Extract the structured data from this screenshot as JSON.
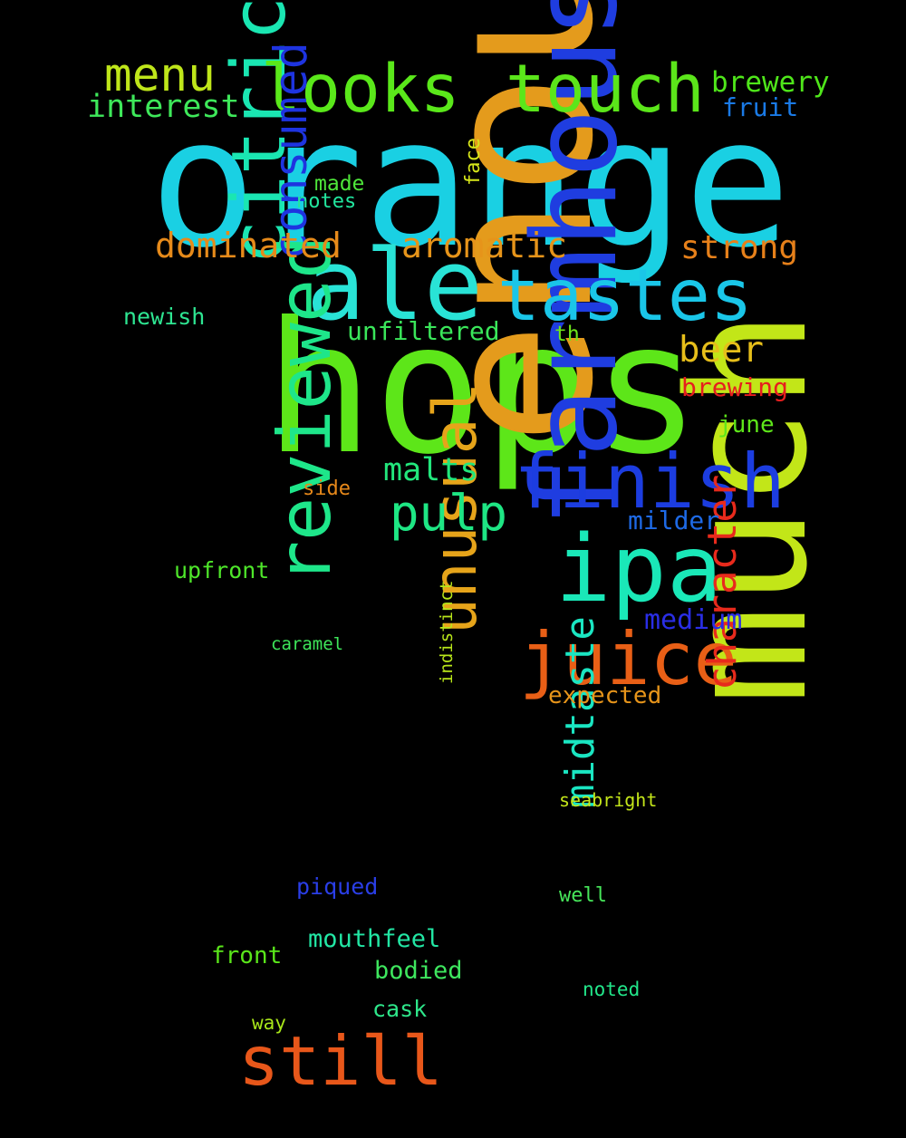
{
  "words": [
    {
      "text": "orange",
      "color": "#1ad0e3",
      "rotated": false
    },
    {
      "text": "hops",
      "color": "#5de619",
      "rotated": false
    },
    {
      "text": "enough",
      "color": "#e49b1c",
      "rotated": true
    },
    {
      "text": "much",
      "color": "#c2e618",
      "rotated": true
    },
    {
      "text": "farmhouse",
      "color": "#1f3de0",
      "rotated": true
    },
    {
      "text": "ale",
      "color": "#29e3d6",
      "rotated": false
    },
    {
      "text": "tastes",
      "color": "#1ac6e8",
      "rotated": false
    },
    {
      "text": "finish",
      "color": "#1c3de0",
      "rotated": false
    },
    {
      "text": "ipa",
      "color": "#1ae8b8",
      "rotated": false
    },
    {
      "text": "juice",
      "color": "#e85f16",
      "rotated": false
    },
    {
      "text": "citric",
      "color": "#1ae6b2",
      "rotated": true
    },
    {
      "text": "reviewed",
      "color": "#1ee68a",
      "rotated": true
    },
    {
      "text": "unusual",
      "color": "#e6a41a",
      "rotated": true
    },
    {
      "text": "still",
      "color": "#e8571a",
      "rotated": false
    },
    {
      "text": "looks",
      "color": "#5ae81a",
      "rotated": false
    },
    {
      "text": "touch",
      "color": "#5be61a",
      "rotated": false
    },
    {
      "text": "menu",
      "color": "#bfe61a",
      "rotated": false
    },
    {
      "text": "consumed",
      "color": "#1e34e0",
      "rotated": true
    },
    {
      "text": "pulp",
      "color": "#1ee684",
      "rotated": false
    },
    {
      "text": "midtaste",
      "color": "#1ae6c2",
      "rotated": true
    },
    {
      "text": "character",
      "color": "#e82a1c",
      "rotated": true
    },
    {
      "text": "aromatic",
      "color": "#e6941a",
      "rotated": false
    },
    {
      "text": "dominated",
      "color": "#e68a1a",
      "rotated": false
    },
    {
      "text": "strong",
      "color": "#e6801a",
      "rotated": false
    },
    {
      "text": "interest",
      "color": "#3ee85a",
      "rotated": false
    },
    {
      "text": "beer",
      "color": "#e6be1a",
      "rotated": false
    },
    {
      "text": "malts",
      "color": "#22e67c",
      "rotated": false
    },
    {
      "text": "brewery",
      "color": "#4fe61a",
      "rotated": false
    },
    {
      "text": "fruit",
      "color": "#1a7ae6",
      "rotated": false
    },
    {
      "text": "unfiltered",
      "color": "#3ae65a",
      "rotated": false
    },
    {
      "text": "brewing",
      "color": "#e61e1e",
      "rotated": false
    },
    {
      "text": "medium",
      "color": "#2a2ee6",
      "rotated": false
    },
    {
      "text": "milder",
      "color": "#1e6ae6",
      "rotated": false
    },
    {
      "text": "expected",
      "color": "#e6941a",
      "rotated": false
    },
    {
      "text": "mouthfeel",
      "color": "#22e6a4",
      "rotated": false
    },
    {
      "text": "bodied",
      "color": "#3ee65e",
      "rotated": false
    },
    {
      "text": "front",
      "color": "#5ae61a",
      "rotated": false
    },
    {
      "text": "upfront",
      "color": "#4ee62a",
      "rotated": false
    },
    {
      "text": "piqued",
      "color": "#2a3ee6",
      "rotated": false
    },
    {
      "text": "cask",
      "color": "#2ee68a",
      "rotated": false
    },
    {
      "text": "newish",
      "color": "#2ee692",
      "rotated": false
    },
    {
      "text": "june",
      "color": "#5ee61a",
      "rotated": false
    },
    {
      "text": "made",
      "color": "#4ee63a",
      "rotated": false
    },
    {
      "text": "notes",
      "color": "#22e69e",
      "rotated": false
    },
    {
      "text": "face",
      "color": "#d6e61a",
      "rotated": true
    },
    {
      "text": "side",
      "color": "#e6881a",
      "rotated": false
    },
    {
      "text": "th",
      "color": "#6ee61a",
      "rotated": false
    },
    {
      "text": "caramel",
      "color": "#3ee65a",
      "rotated": false
    },
    {
      "text": "indistinct",
      "color": "#b8e61a",
      "rotated": true
    },
    {
      "text": "seabright",
      "color": "#c4e61a",
      "rotated": false
    },
    {
      "text": "well",
      "color": "#46e65a",
      "rotated": false
    },
    {
      "text": "noted",
      "color": "#22e68a",
      "rotated": false
    },
    {
      "text": "way",
      "color": "#a8e61a",
      "rotated": false
    }
  ]
}
